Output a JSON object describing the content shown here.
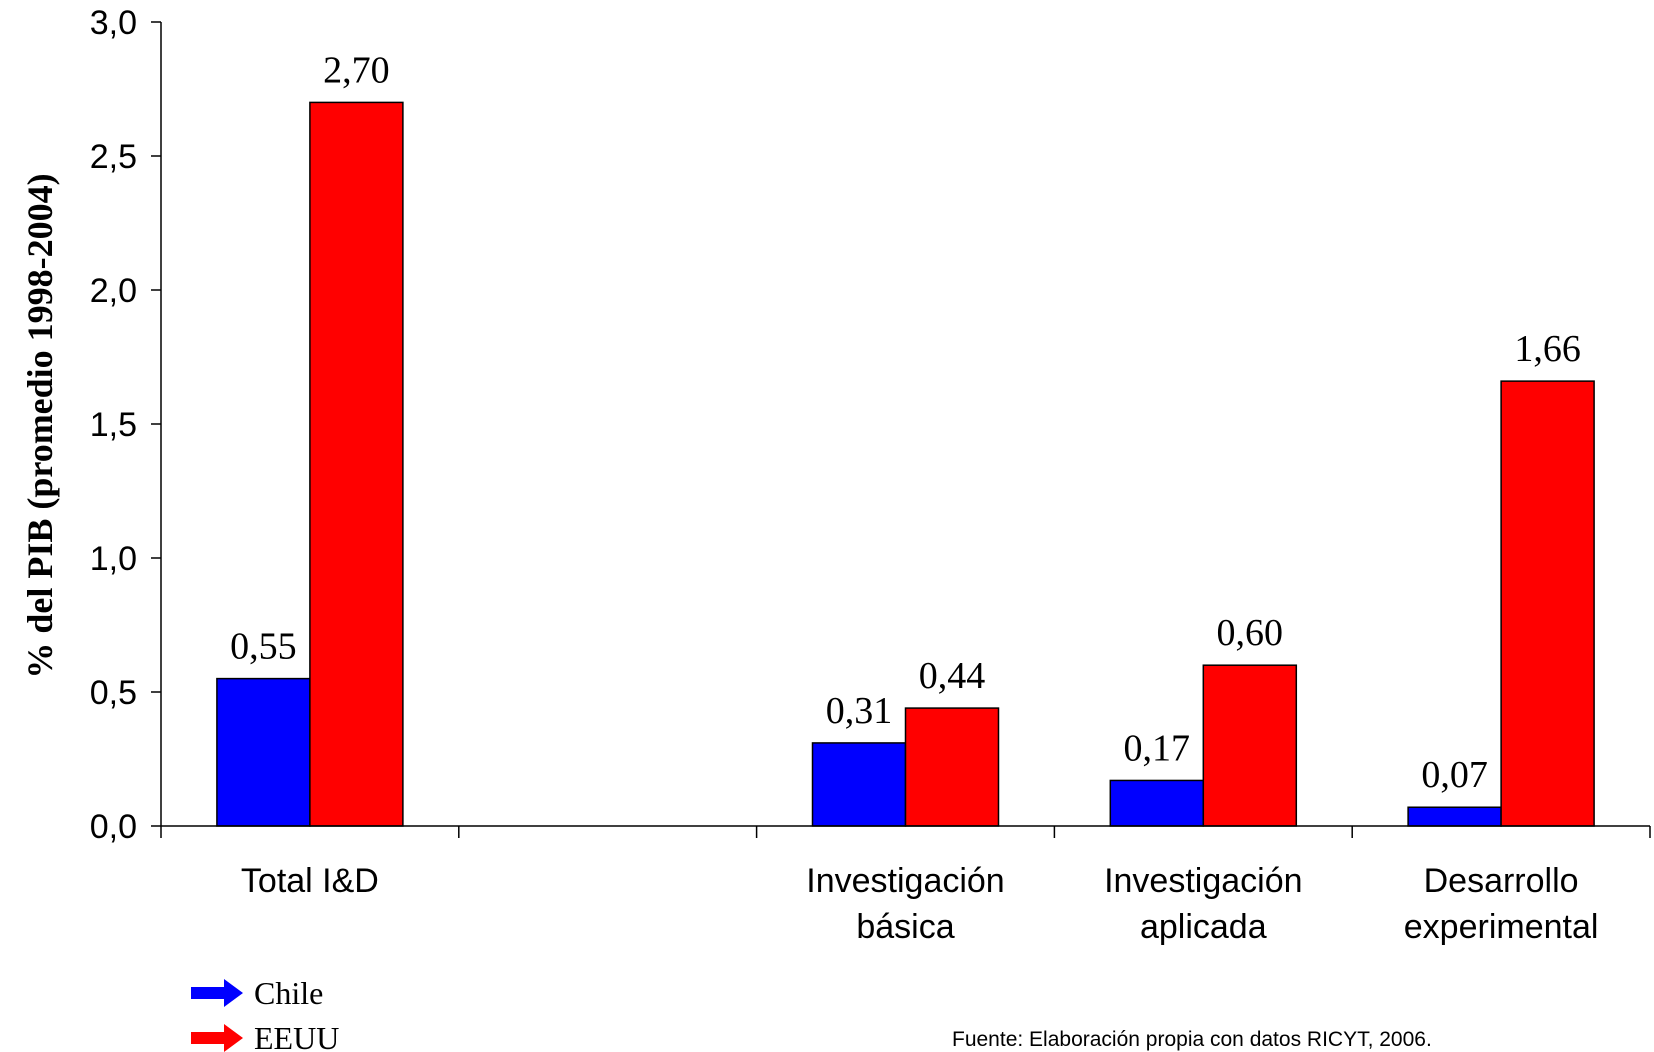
{
  "chart_data": {
    "type": "bar",
    "categories": [
      [
        "Total I&D"
      ],
      [],
      [
        "Investigación",
        "básica"
      ],
      [
        "Investigación",
        "aplicada"
      ],
      [
        "Desarrollo",
        "experimental"
      ]
    ],
    "series": [
      {
        "name": "Chile",
        "color": "#0000ff",
        "values": [
          0.55,
          null,
          0.31,
          0.17,
          0.07
        ],
        "labels": [
          "0,55",
          "",
          "0,31",
          "0,17",
          "0,07"
        ]
      },
      {
        "name": "EEUU",
        "color": "#ff0000",
        "values": [
          2.7,
          null,
          0.44,
          0.6,
          1.66
        ],
        "labels": [
          "2,70",
          "",
          "0,44",
          "0,60",
          "1,66"
        ]
      }
    ],
    "ylabel": "% del PIB (promedio 1998-2004)",
    "xlabel": "",
    "ylim": [
      0,
      3.0
    ],
    "yticks": [
      0.0,
      0.5,
      1.0,
      1.5,
      2.0,
      2.5,
      3.0
    ],
    "ytick_labels": [
      "0,0",
      "0,5",
      "1,0",
      "1,5",
      "2,0",
      "2,5",
      "3,0"
    ],
    "legend": "bottom-left",
    "grid": false,
    "source": "Fuente: Elaboración propia con datos RICYT, 2006."
  }
}
